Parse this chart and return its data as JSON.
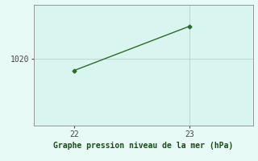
{
  "x": [
    22,
    23
  ],
  "y": [
    1018.2,
    1024.8
  ],
  "line_color": "#2d6a2d",
  "marker": "D",
  "marker_size": 2.5,
  "plot_bg_color": "#d9f5f0",
  "fig_bg_color": "#e8faf5",
  "grid_color": "#b0c8c0",
  "xlabel": "Graphe pression niveau de la mer (hPa)",
  "xlabel_color": "#1a4d1a",
  "xlabel_fontsize": 7,
  "xticks": [
    22,
    23
  ],
  "ylim": [
    1010,
    1028
  ],
  "xlim": [
    21.65,
    23.55
  ],
  "tick_color": "#444444",
  "tick_fontsize": 7,
  "spine_color": "#888888",
  "ytick_value": 1020,
  "ytick_label": "1020"
}
